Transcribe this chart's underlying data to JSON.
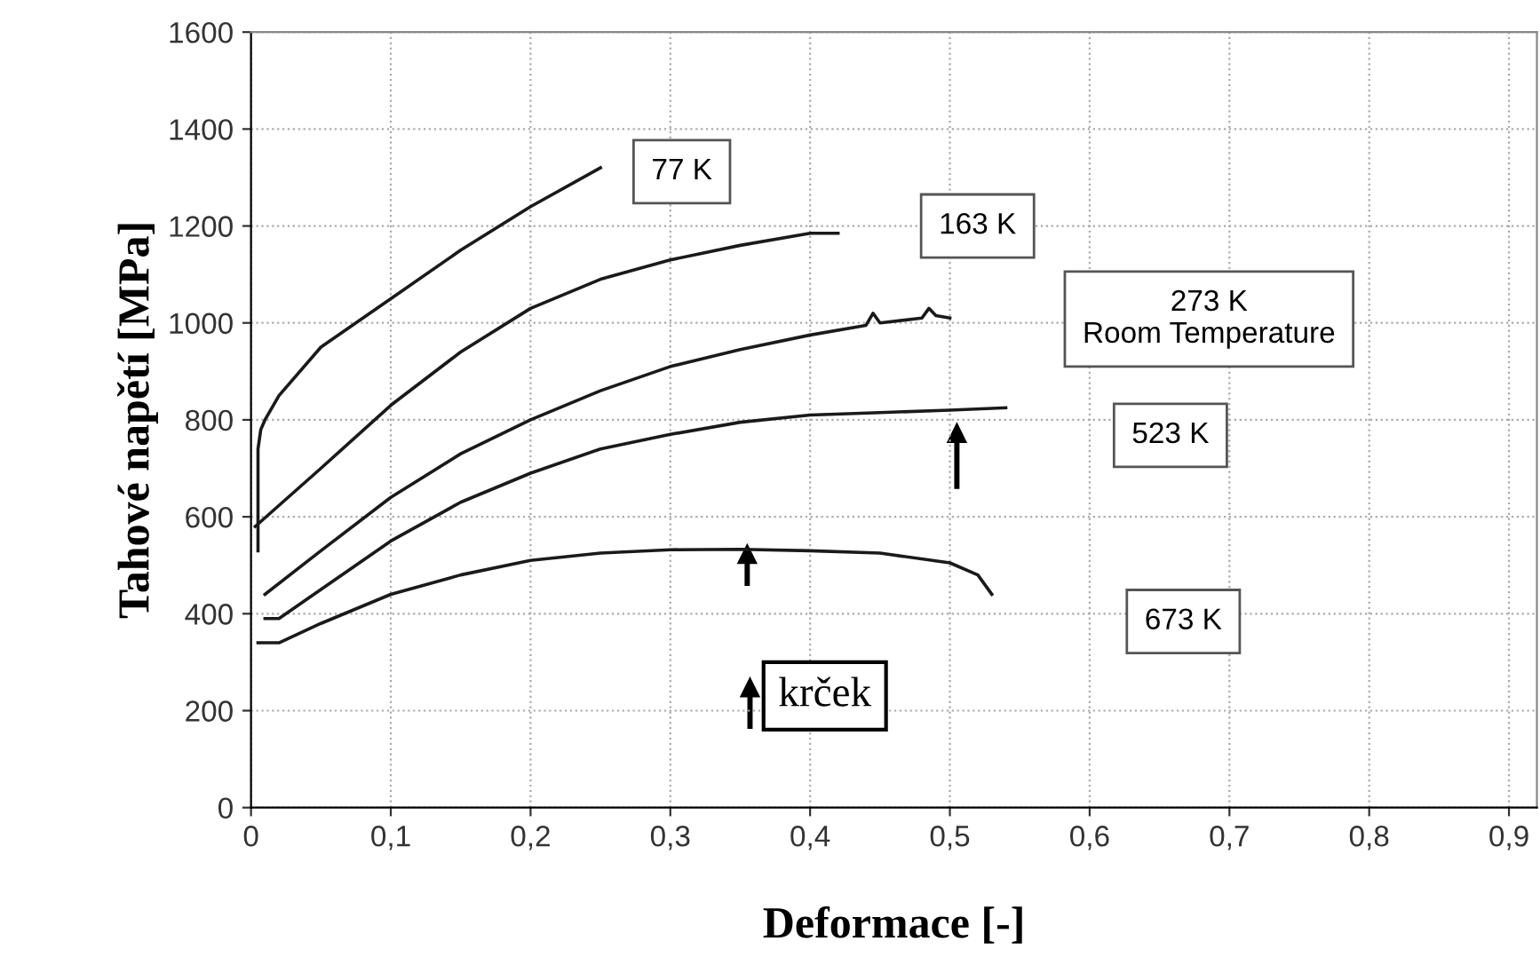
{
  "chart_data": {
    "type": "line",
    "xlabel": "Deformace [-]",
    "ylabel": "Tahové napětí [MPa]",
    "series": [
      {
        "color": "#1a1a1a",
        "x": [
          0.005,
          0.005,
          0.007,
          0.01,
          0.02,
          0.05,
          0.1,
          0.15,
          0.2,
          0.25
        ],
        "values": [
          530,
          740,
          780,
          800,
          850,
          950,
          1050,
          1150,
          1240,
          1320
        ]
      },
      {
        "color": "#1a1a1a",
        "x": [
          0.003,
          0.05,
          0.1,
          0.15,
          0.2,
          0.25,
          0.3,
          0.35,
          0.4,
          0.42
        ],
        "values": [
          580,
          700,
          830,
          940,
          1030,
          1090,
          1130,
          1160,
          1185,
          1185
        ]
      },
      {
        "color": "#1a1a1a",
        "x": [
          0.01,
          0.05,
          0.1,
          0.15,
          0.2,
          0.25,
          0.3,
          0.35,
          0.4,
          0.44,
          0.445,
          0.45,
          0.48,
          0.485,
          0.49,
          0.5
        ],
        "values": [
          440,
          530,
          640,
          730,
          800,
          860,
          910,
          945,
          975,
          995,
          1020,
          1000,
          1010,
          1030,
          1015,
          1010
        ]
      },
      {
        "color": "#1a1a1a",
        "x": [
          0.01,
          0.02,
          0.05,
          0.1,
          0.15,
          0.2,
          0.25,
          0.3,
          0.35,
          0.4,
          0.45,
          0.5,
          0.54
        ],
        "values": [
          390,
          390,
          450,
          550,
          630,
          690,
          740,
          770,
          795,
          810,
          815,
          820,
          825
        ]
      },
      {
        "color": "#1a1a1a",
        "x": [
          0.005,
          0.02,
          0.05,
          0.1,
          0.15,
          0.2,
          0.25,
          0.3,
          0.35,
          0.4,
          0.45,
          0.5,
          0.52,
          0.53
        ],
        "values": [
          340,
          340,
          380,
          440,
          480,
          510,
          525,
          532,
          533,
          530,
          525,
          505,
          480,
          440
        ]
      }
    ],
    "annotations": [
      "77 K",
      "163 K",
      "273 K\nRoom Temperature",
      "523 K",
      "673 K",
      "krček"
    ],
    "xlim": [
      0,
      0.92
    ],
    "ylim": [
      0,
      1600
    ],
    "xticks": [
      0,
      {
        "value": 0.1,
        "label": "0,1"
      },
      {
        "value": 0.2,
        "label": "0,2"
      },
      {
        "value": 0.3,
        "label": "0,3"
      },
      {
        "value": 0.4,
        "label": "0,4"
      },
      {
        "value": 0.5,
        "label": "0,5"
      },
      {
        "value": 0.6,
        "label": "0,6"
      },
      {
        "value": 0.7,
        "label": "0,7"
      },
      {
        "value": 0.8,
        "label": "0,8"
      },
      {
        "value": 0.9,
        "label": "0,9"
      }
    ],
    "yticks": [
      0,
      200,
      400,
      600,
      800,
      1000,
      1200,
      1400,
      1600
    ],
    "grid": true,
    "marker": "none",
    "line_style": "solid"
  }
}
